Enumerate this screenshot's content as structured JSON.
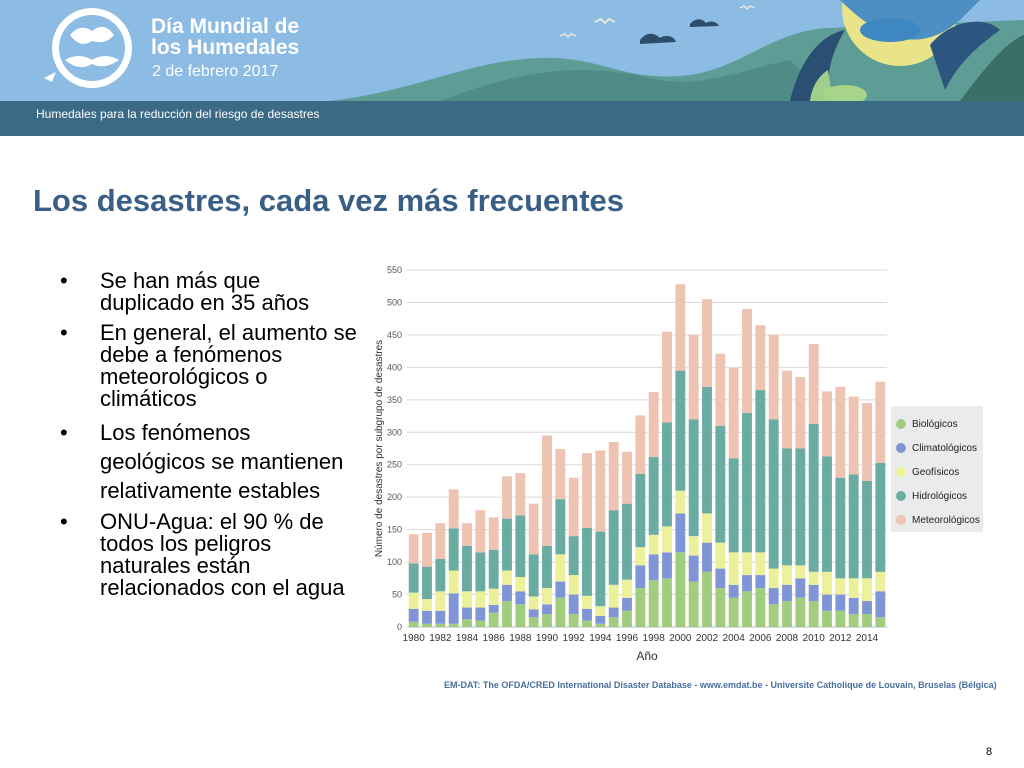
{
  "header": {
    "event_title_line1": "Día Mundial de",
    "event_title_line2": "los Humedales",
    "event_date": "2 de febrero 2017",
    "subtitle": "Humedales para la reducción del riesgo de desastres"
  },
  "slide": {
    "title": "Los desastres, cada vez más frecuentes",
    "bullets": [
      "Se han más que duplicado en 35 años",
      "En general, el aumento se debe a fenómenos meteorológicos o climáticos",
      "Los fenómenos geológicos se mantienen relativamente estables",
      "ONU-Agua: el 90 % de todos los peligros naturales están relacionados con el agua"
    ],
    "bullet_symbol": "•",
    "source": "EM-DAT: The OFDA/CRED International Disaster Database - www.emdat.be - Universite Catholique de Louvain, Bruselas (Bélgica)",
    "page_number": "8"
  },
  "chart_data": {
    "type": "bar",
    "stacked": true,
    "xlabel": "Año",
    "ylabel": "Número de desastres por subgrupo de desastres",
    "ylim": [
      0,
      550
    ],
    "yticks": [
      0,
      50,
      100,
      150,
      200,
      250,
      300,
      350,
      400,
      450,
      500,
      550
    ],
    "grid": true,
    "legend_position": "right",
    "categories": [
      1980,
      1981,
      1982,
      1983,
      1984,
      1985,
      1986,
      1987,
      1988,
      1989,
      1990,
      1991,
      1992,
      1993,
      1994,
      1995,
      1996,
      1997,
      1998,
      1999,
      2000,
      2001,
      2002,
      2003,
      2004,
      2005,
      2006,
      2007,
      2008,
      2009,
      2010,
      2011,
      2012,
      2013,
      2014,
      2015
    ],
    "tick_labels": [
      "1980",
      "1982",
      "1984",
      "1986",
      "1988",
      "1990",
      "1992",
      "1994",
      "1996",
      "1998",
      "2000",
      "2002",
      "2004",
      "2006",
      "2008",
      "2010",
      "2012",
      "2014"
    ],
    "series": [
      {
        "name": "Biológicos",
        "color": "#a3cd7e",
        "values": [
          8,
          5,
          5,
          5,
          12,
          10,
          22,
          40,
          35,
          15,
          20,
          45,
          20,
          10,
          5,
          15,
          25,
          60,
          72,
          75,
          115,
          70,
          85,
          60,
          45,
          55,
          60,
          35,
          40,
          45,
          40,
          25,
          25,
          20,
          20,
          15
        ]
      },
      {
        "name": "Climatológicos",
        "color": "#8095d6",
        "values": [
          20,
          20,
          20,
          47,
          18,
          20,
          12,
          25,
          20,
          12,
          15,
          25,
          30,
          18,
          12,
          15,
          20,
          35,
          40,
          40,
          60,
          40,
          45,
          30,
          20,
          25,
          20,
          25,
          25,
          30,
          25,
          25,
          25,
          25,
          20,
          40
        ]
      },
      {
        "name": "Geofísicos",
        "color": "#edf09a",
        "values": [
          25,
          18,
          30,
          35,
          25,
          25,
          25,
          22,
          22,
          20,
          25,
          42,
          30,
          20,
          15,
          35,
          28,
          28,
          30,
          40,
          35,
          30,
          45,
          40,
          50,
          35,
          35,
          30,
          30,
          20,
          20,
          35,
          25,
          30,
          35,
          30
        ]
      },
      {
        "name": "Hidrológicos",
        "color": "#6aaba2",
        "values": [
          45,
          50,
          50,
          65,
          70,
          60,
          60,
          80,
          95,
          65,
          65,
          85,
          60,
          105,
          115,
          115,
          117,
          113,
          120,
          160,
          185,
          180,
          195,
          180,
          145,
          215,
          250,
          230,
          180,
          180,
          228,
          178,
          155,
          160,
          150,
          168
        ]
      },
      {
        "name": "Meteorológicos",
        "color": "#eec3b2",
        "values": [
          45,
          52,
          55,
          60,
          35,
          65,
          50,
          65,
          65,
          78,
          170,
          77,
          90,
          115,
          125,
          105,
          80,
          90,
          100,
          140,
          133,
          130,
          135,
          111,
          139,
          160,
          100,
          130,
          120,
          110,
          123,
          100,
          140,
          120,
          120,
          125
        ]
      }
    ]
  }
}
